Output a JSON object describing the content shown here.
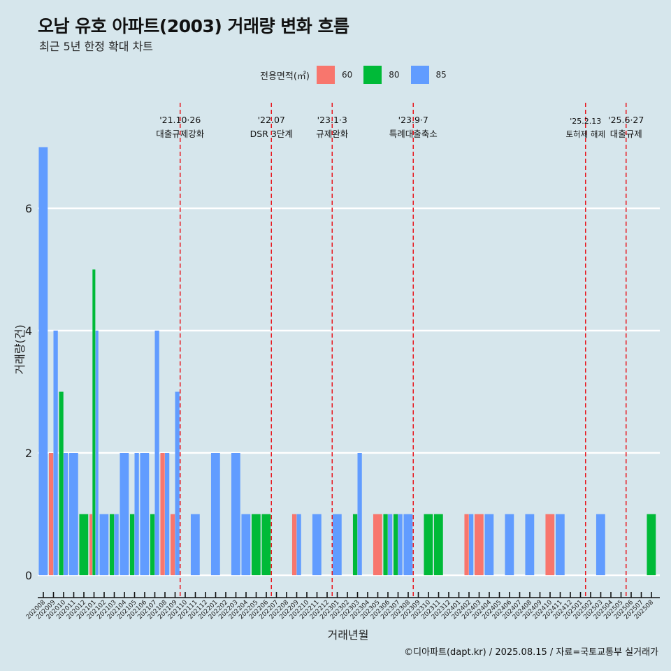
{
  "title": "오남 유호 아파트(2003) 거래량 변화 흐름",
  "subtitle": "최근 5년 한정 확대 차트",
  "caption": "©디아파트(dapt.kr) / 2025.08.15 / 자료=국토교통부 실거래가",
  "colors": {
    "60": "#f8766d",
    "80": "#00ba38",
    "85": "#619cff",
    "vline": "#e8171e",
    "grid": "#ffffff",
    "background": "#d6e6ec"
  },
  "chart_data": {
    "type": "bar",
    "xlabel": "거래년월",
    "ylabel": "거래량(건)",
    "ylim": [
      0,
      7
    ],
    "yticks": [
      0,
      2,
      4,
      6
    ],
    "legend_title": "전용면적(㎡)",
    "legend_position": "top",
    "categories": [
      "202008",
      "202009",
      "202010",
      "202011",
      "202012",
      "202101",
      "202102",
      "202103",
      "202104",
      "202105",
      "202106",
      "202107",
      "202108",
      "202109",
      "202110",
      "202111",
      "202112",
      "202201",
      "202202",
      "202203",
      "202204",
      "202205",
      "202206",
      "202207",
      "202208",
      "202209",
      "202210",
      "202211",
      "202212",
      "202301",
      "202302",
      "202303",
      "202304",
      "202305",
      "202306",
      "202307",
      "202308",
      "202309",
      "202310",
      "202311",
      "202312",
      "202401",
      "202402",
      "202403",
      "202404",
      "202405",
      "202406",
      "202407",
      "202408",
      "202409",
      "202410",
      "202411",
      "202412",
      "202501",
      "202502",
      "202503",
      "202504",
      "202505",
      "202506",
      "202507",
      "202508"
    ],
    "series": [
      {
        "name": "60",
        "values": [
          0,
          2,
          0,
          0,
          0,
          1,
          0,
          0,
          0,
          0,
          0,
          0,
          2,
          1,
          0,
          0,
          0,
          0,
          0,
          0,
          0,
          0,
          0,
          0,
          0,
          1,
          0,
          0,
          0,
          0,
          0,
          0,
          0,
          1,
          0,
          0,
          0,
          0,
          0,
          0,
          0,
          0,
          1,
          1,
          0,
          0,
          0,
          0,
          0,
          0,
          1,
          0,
          0,
          0,
          0,
          0,
          0,
          0,
          0,
          0,
          0
        ]
      },
      {
        "name": "80",
        "values": [
          0,
          0,
          3,
          0,
          1,
          5,
          0,
          1,
          0,
          1,
          0,
          1,
          0,
          0,
          0,
          0,
          0,
          0,
          0,
          0,
          0,
          1,
          1,
          0,
          0,
          0,
          0,
          0,
          0,
          0,
          0,
          1,
          0,
          0,
          1,
          1,
          0,
          0,
          1,
          1,
          0,
          0,
          0,
          0,
          0,
          0,
          0,
          0,
          0,
          0,
          0,
          0,
          0,
          0,
          0,
          0,
          0,
          0,
          0,
          0,
          1
        ]
      },
      {
        "name": "85",
        "values": [
          7,
          4,
          2,
          2,
          0,
          4,
          1,
          1,
          2,
          2,
          2,
          4,
          2,
          3,
          0,
          1,
          0,
          2,
          0,
          2,
          1,
          0,
          0,
          0,
          0,
          1,
          0,
          1,
          0,
          1,
          0,
          2,
          0,
          0,
          1,
          1,
          1,
          0,
          0,
          0,
          0,
          0,
          1,
          0,
          1,
          0,
          1,
          0,
          1,
          0,
          0,
          1,
          0,
          0,
          0,
          1,
          0,
          0,
          0,
          0,
          0
        ]
      }
    ],
    "events": [
      {
        "date": "'21.10·26",
        "label": "대출규제강화",
        "after": "202110"
      },
      {
        "date": "'22.07",
        "label": "DSR 3단계",
        "after": "202207"
      },
      {
        "date": "'23.1·3",
        "label": "규제완화",
        "after": "202301"
      },
      {
        "date": "'23.9·7",
        "label": "특례대출축소",
        "after": "202309"
      },
      {
        "date": "'25.2.13",
        "label": "토허제 해제",
        "after": "202502"
      },
      {
        "date": "'25.6·27",
        "label": "대출규제",
        "after": "202506"
      }
    ]
  }
}
